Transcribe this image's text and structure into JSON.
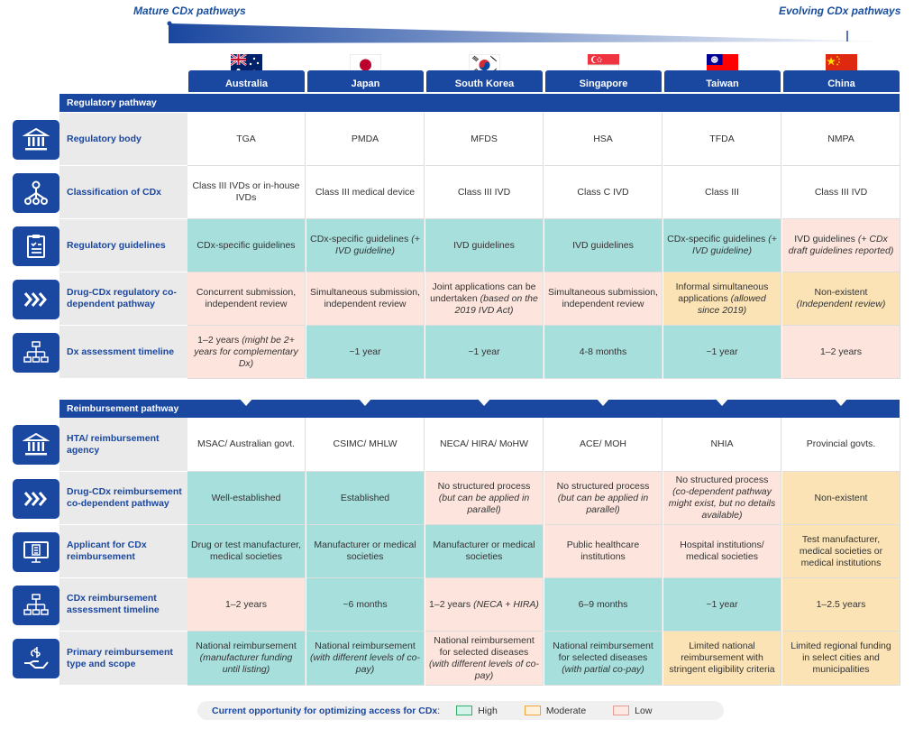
{
  "top": {
    "left_label": "Mature CDx pathways",
    "right_label": "Evolving CDx pathways"
  },
  "countries": [
    {
      "name": "Australia",
      "flag": "australia-flag"
    },
    {
      "name": "Japan",
      "flag": "japan-flag"
    },
    {
      "name": "South Korea",
      "flag": "south-korea-flag"
    },
    {
      "name": "Singapore",
      "flag": "singapore-flag"
    },
    {
      "name": "Taiwan",
      "flag": "taiwan-flag"
    },
    {
      "name": "China",
      "flag": "china-flag"
    }
  ],
  "colors": {
    "high": "#a7dfdd",
    "moderate": "#fbe3b5",
    "low": "#fde5dd",
    "accent": "#1a47a0"
  },
  "sections": [
    {
      "title": "Regulatory pathway",
      "rows": [
        {
          "label": "Regulatory body",
          "icon": "building-icon",
          "cells": [
            {
              "text": "TGA",
              "level": "none"
            },
            {
              "text": "PMDA",
              "level": "none"
            },
            {
              "text": "MFDS",
              "level": "none"
            },
            {
              "text": "HSA",
              "level": "none"
            },
            {
              "text": "TFDA",
              "level": "none"
            },
            {
              "text": "NMPA",
              "level": "none"
            }
          ]
        },
        {
          "label": "Classification of CDx",
          "icon": "network-icon",
          "cells": [
            {
              "text": "Class III IVDs or in-house IVDs",
              "level": "none"
            },
            {
              "text": "Class III medical device",
              "level": "none"
            },
            {
              "text": "Class III IVD",
              "level": "none"
            },
            {
              "text": "Class C IVD",
              "level": "none"
            },
            {
              "text": "Class III",
              "level": "none"
            },
            {
              "text": "Class III IVD",
              "level": "none"
            }
          ]
        },
        {
          "label": "Regulatory guidelines",
          "icon": "clipboard-icon",
          "cells": [
            {
              "text": "CDx-specific guidelines",
              "level": "high"
            },
            {
              "text": "CDx-specific guidelines",
              "note": "(+ IVD guideline)",
              "level": "high"
            },
            {
              "text": "IVD guidelines",
              "level": "high"
            },
            {
              "text": "IVD guidelines",
              "level": "high"
            },
            {
              "text": "CDx-specific guidelines",
              "note": "(+ IVD guideline)",
              "level": "high"
            },
            {
              "text": "IVD guidelines",
              "note": "(+ CDx draft guidelines reported)",
              "level": "low"
            }
          ]
        },
        {
          "label": "Drug-CDx regulatory co-dependent pathway",
          "icon": "chevrons-icon",
          "cells": [
            {
              "text": "Concurrent submission, independent review",
              "level": "low"
            },
            {
              "text": "Simultaneous submission, independent review",
              "level": "low"
            },
            {
              "text": "Joint applications can be undertaken",
              "note": "(based on the 2019 IVD Act)",
              "level": "low"
            },
            {
              "text": "Simultaneous submission, independent review",
              "level": "low"
            },
            {
              "text": "Informal simultaneous applications",
              "note": "(allowed since 2019)",
              "level": "moderate"
            },
            {
              "text": "Non-existent",
              "note": "(Independent review)",
              "level": "moderate"
            }
          ]
        },
        {
          "label": "Dx assessment timeline",
          "icon": "hierarchy-icon",
          "cells": [
            {
              "text": "1–2 years",
              "note": "(might be 2+ years for complementary Dx)",
              "level": "low"
            },
            {
              "text": "~1 year",
              "level": "high"
            },
            {
              "text": "~1 year",
              "level": "high"
            },
            {
              "text": "4-8 months",
              "level": "high"
            },
            {
              "text": "~1 year",
              "level": "high"
            },
            {
              "text": "1–2 years",
              "level": "low"
            }
          ]
        }
      ]
    },
    {
      "title": "Reimbursement pathway",
      "rows": [
        {
          "label": "HTA/ reimbursement agency",
          "icon": "building-icon",
          "cells": [
            {
              "text": "MSAC/ Australian govt.",
              "level": "none"
            },
            {
              "text": "CSIMC/ MHLW",
              "level": "none"
            },
            {
              "text": "NECA/ HIRA/ MoHW",
              "level": "none"
            },
            {
              "text": "ACE/ MOH",
              "level": "none"
            },
            {
              "text": "NHIA",
              "level": "none"
            },
            {
              "text": "Provincial govts.",
              "level": "none"
            }
          ]
        },
        {
          "label": "Drug-CDx reimbursement co-dependent pathway",
          "icon": "chevrons-icon",
          "cells": [
            {
              "text": "Well-established",
              "level": "high"
            },
            {
              "text": "Established",
              "level": "high"
            },
            {
              "text": "No structured process",
              "note": "(but can be applied in parallel)",
              "level": "low"
            },
            {
              "text": "No structured process",
              "note": "(but can be applied in parallel)",
              "level": "low"
            },
            {
              "text": "No structured process",
              "note": "(co-dependent pathway might exist, but no details available)",
              "level": "low"
            },
            {
              "text": "Non-existent",
              "level": "moderate"
            }
          ]
        },
        {
          "label": "Applicant for CDx reimbursement",
          "icon": "monitor-icon",
          "cells": [
            {
              "text": "Drug or test manufacturer, medical societies",
              "level": "high"
            },
            {
              "text": "Manufacturer or medical societies",
              "level": "high"
            },
            {
              "text": "Manufacturer or medical societies",
              "level": "high"
            },
            {
              "text": "Public healthcare institutions",
              "level": "low"
            },
            {
              "text": "Hospital institutions/ medical societies",
              "level": "low"
            },
            {
              "text": "Test manufacturer, medical societies or medical institutions",
              "level": "moderate"
            }
          ]
        },
        {
          "label": "CDx reimbursement assessment timeline",
          "icon": "hierarchy-icon",
          "cells": [
            {
              "text": "1–2 years",
              "level": "low"
            },
            {
              "text": "~6 months",
              "level": "high"
            },
            {
              "text": "1–2 years",
              "note": "(NECA + HIRA)",
              "level": "low"
            },
            {
              "text": "6–9 months",
              "level": "high"
            },
            {
              "text": "~1 year",
              "level": "high"
            },
            {
              "text": "1–2.5 years",
              "level": "moderate"
            }
          ]
        },
        {
          "label": "Primary reimbursement type and scope",
          "icon": "hand-coin-icon",
          "cells": [
            {
              "text": "National reimbursement",
              "note": "(manufacturer funding until listing)",
              "level": "high"
            },
            {
              "text": "National reimbursement",
              "note": "(with different levels of co-pay)",
              "level": "high"
            },
            {
              "text": "National reimbursement for selected diseases",
              "note": "(with different levels of co-pay)",
              "level": "low"
            },
            {
              "text": "National reimbursement for selected diseases",
              "note": "(with partial co-pay)",
              "level": "high"
            },
            {
              "text": "Limited national reimbursement with stringent eligibility criteria",
              "level": "moderate"
            },
            {
              "text": "Limited regional funding in select cities and municipalities",
              "level": "moderate"
            }
          ]
        }
      ]
    }
  ],
  "legend": {
    "title": "Current opportunity for optimizing access for CDx",
    "colon": ":",
    "items": [
      {
        "label": "High",
        "border": "#2fae6e",
        "fill": "#d6f3ea"
      },
      {
        "label": "Moderate",
        "border": "#f2a33a",
        "fill": "#fdf1dc"
      },
      {
        "label": "Low",
        "border": "#e89a8e",
        "fill": "#fde8e3"
      }
    ]
  }
}
